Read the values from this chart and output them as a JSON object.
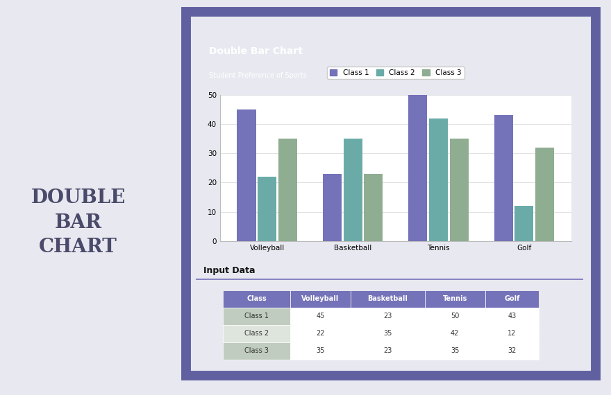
{
  "title": "Double Bar Chart",
  "subtitle": "Student Preference of Sports",
  "categories": [
    "Volleyball",
    "Basketball",
    "Tennis",
    "Golf"
  ],
  "classes": [
    "Class 1",
    "Class 2",
    "Class 3"
  ],
  "values": {
    "Class 1": [
      45,
      23,
      50,
      43
    ],
    "Class 2": [
      22,
      35,
      42,
      12
    ],
    "Class 3": [
      35,
      23,
      35,
      32
    ]
  },
  "bar_colors": [
    "#7472b8",
    "#6aaba8",
    "#8fad91"
  ],
  "ylim": [
    0,
    50
  ],
  "yticks": [
    0,
    10,
    20,
    30,
    40,
    50
  ],
  "bg_outer": "#e8e8f0",
  "bg_sage": "#adbdad",
  "bg_card_white": "#f5f5f5",
  "title_bg": "#7472b8",
  "subtitle_bg": "#8fad91",
  "table_header_bg": "#7472b8",
  "table_row_odd_bg": "#c0ccbf",
  "table_row_even_bg": "#dde5dc",
  "table_header_color": "#ffffff",
  "table_row_color": "#333333",
  "input_data_label": "Input Data",
  "separator_color": "#7472b8",
  "left_text_color": "#4a4a6a",
  "border_color": "#6060a0",
  "chart_bg": "#ffffff",
  "chart_border": "#cccccc"
}
